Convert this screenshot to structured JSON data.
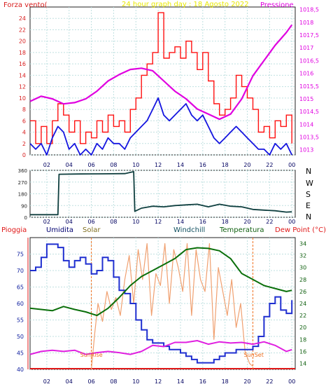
{
  "colors": {
    "wind_axis": "#d81d1d",
    "pressure": "#e000e0",
    "title": "#e8e800",
    "gust": "#ff1010",
    "avg": "#1515e0",
    "dir": "#0f3f3f",
    "humidity": "#1f2fd0",
    "temperature": "#0a6f0a",
    "dew": "#e020e0",
    "solar": "#f0a070",
    "rain_axis": "#e01818",
    "sunlabel": "#f07020"
  },
  "chart_data": [
    {
      "type": "line",
      "title": "24 hour graph day : 18 Agosto 2022",
      "ylabel_left": "Forza vento(",
      "ylabel_right": "Pressione",
      "x_ticks": [
        "02",
        "04",
        "06",
        "08",
        "10",
        "12",
        "14",
        "16",
        "18",
        "20",
        "22",
        "00"
      ],
      "x_range_hours": [
        0.5,
        24.3
      ],
      "ylim_left": [
        0,
        26
      ],
      "y_ticks_left": [
        "0",
        "2",
        "4",
        "6",
        "8",
        "10",
        "12",
        "14",
        "16",
        "18",
        "20",
        "22",
        "24"
      ],
      "ylim_right": [
        1012.8,
        1018.6
      ],
      "y_ticks_right": [
        "1013",
        "1013,5",
        "1014",
        "1014,5",
        "1015",
        "1015,5",
        "1016",
        "1016,5",
        "1017",
        "1017,5",
        "1018",
        "1018,5"
      ],
      "grid": true,
      "series": [
        {
          "role": "gust",
          "axis": "left",
          "x": [
            0.5,
            1.0,
            1.5,
            2.0,
            2.5,
            3.0,
            3.5,
            4.0,
            4.5,
            5.0,
            5.5,
            6.0,
            6.5,
            7.0,
            7.5,
            8.0,
            8.5,
            9.0,
            9.5,
            10.0,
            10.5,
            11.0,
            11.5,
            12.0,
            12.5,
            13.0,
            13.5,
            14.0,
            14.5,
            15.0,
            15.5,
            16.0,
            16.5,
            17.0,
            17.5,
            18.0,
            18.5,
            19.0,
            19.5,
            20.0,
            20.5,
            21.0,
            21.5,
            22.0,
            22.5,
            23.0,
            23.5,
            24.0
          ],
          "values": [
            6,
            2,
            5,
            2,
            6,
            9,
            7,
            4,
            6,
            2,
            4,
            3,
            6,
            4,
            7,
            5,
            6,
            4,
            8,
            10,
            14,
            16,
            18,
            25,
            17,
            18,
            19,
            17,
            20,
            18,
            15,
            18,
            13,
            9,
            7,
            8,
            10,
            14,
            12,
            10,
            8,
            4,
            5,
            3,
            6,
            5,
            7,
            2
          ]
        },
        {
          "role": "avg",
          "axis": "left",
          "x": [
            0.5,
            1.0,
            1.5,
            2.0,
            2.5,
            3.0,
            3.5,
            4.0,
            4.5,
            5.0,
            5.5,
            6.0,
            6.5,
            7.0,
            7.5,
            8.0,
            8.5,
            9.0,
            9.5,
            10.0,
            10.5,
            11.0,
            11.5,
            12.0,
            12.5,
            13.0,
            13.5,
            14.0,
            14.5,
            15.0,
            15.5,
            16.0,
            16.5,
            17.0,
            17.5,
            18.0,
            18.5,
            19.0,
            19.5,
            20.0,
            20.5,
            21.0,
            21.5,
            22.0,
            22.5,
            23.0,
            23.5,
            24.0
          ],
          "values": [
            2,
            1,
            2,
            0,
            3,
            5,
            4,
            1,
            2,
            0,
            1,
            0,
            2,
            1,
            3,
            2,
            2,
            1,
            3,
            4,
            5,
            6,
            8,
            10,
            7,
            6,
            7,
            8,
            9,
            7,
            6,
            7,
            5,
            3,
            2,
            3,
            4,
            5,
            4,
            3,
            2,
            1,
            1,
            0,
            2,
            1,
            2,
            0
          ]
        },
        {
          "role": "pressure",
          "axis": "right",
          "x": [
            0.5,
            1.5,
            2.5,
            3.5,
            4.5,
            5.5,
            6.5,
            7.5,
            8.5,
            9.5,
            10.5,
            11.5,
            12.5,
            13.5,
            14.5,
            15.5,
            16.5,
            17.5,
            18.5,
            19.5,
            20.5,
            21.5,
            22.5,
            23.5,
            24.0
          ],
          "values": [
            1014.9,
            1015.1,
            1015.0,
            1014.8,
            1014.85,
            1015.0,
            1015.3,
            1015.7,
            1015.95,
            1016.15,
            1016.2,
            1016.1,
            1015.7,
            1015.3,
            1015.0,
            1014.6,
            1014.4,
            1014.2,
            1014.4,
            1015.0,
            1015.9,
            1016.5,
            1017.1,
            1017.6,
            1017.9
          ]
        }
      ]
    },
    {
      "type": "line",
      "title": "",
      "x_ticks": [
        "02",
        "04",
        "06",
        "08",
        "10",
        "12",
        "14",
        "16",
        "18",
        "20",
        "22",
        "00"
      ],
      "ylim": [
        0,
        360
      ],
      "y_ticks": [
        "0",
        "90",
        "180",
        "270",
        "360"
      ],
      "side_labels": [
        "N",
        "W",
        "S",
        "E",
        "N"
      ],
      "grid": true,
      "series": [
        {
          "role": "direction",
          "x": [
            0.5,
            2.0,
            3.0,
            3.1,
            5.0,
            7.0,
            9.0,
            9.8,
            9.9,
            10.5,
            11.5,
            12.5,
            13.5,
            14.5,
            15.5,
            16.5,
            17.5,
            18.5,
            19.5,
            20.5,
            21.5,
            22.5,
            23.5,
            24.0
          ],
          "values": [
            20,
            20,
            20,
            330,
            332,
            333,
            335,
            350,
            45,
            70,
            85,
            80,
            90,
            95,
            100,
            80,
            100,
            85,
            80,
            60,
            55,
            50,
            40,
            42
          ]
        }
      ]
    },
    {
      "type": "line",
      "title": "",
      "legend": [
        "Pioggia",
        "Umidita",
        "Solar",
        "Windchill",
        "Temperatura",
        "Dew Point (°C)"
      ],
      "x_ticks": [
        "02",
        "04",
        "06",
        "08",
        "10",
        "12",
        "14",
        "16",
        "18",
        "20",
        "22",
        "00"
      ],
      "ylim_left": [
        40,
        80
      ],
      "y_ticks_left": [
        "40",
        "45",
        "50",
        "55",
        "60",
        "65",
        "70",
        "75"
      ],
      "ylim_right": [
        13,
        35
      ],
      "y_ticks_right": [
        "14",
        "16",
        "18",
        "20",
        "22",
        "24",
        "26",
        "28",
        "30",
        "32",
        "34"
      ],
      "annotations": [
        "SunRise",
        "SunSet"
      ],
      "grid": true,
      "series": [
        {
          "role": "humidity",
          "axis": "left",
          "x": [
            0.5,
            1.0,
            1.5,
            2.0,
            2.5,
            3.0,
            3.5,
            4.0,
            4.5,
            5.0,
            5.5,
            6.0,
            6.5,
            7.0,
            7.5,
            8.0,
            8.5,
            9.0,
            9.5,
            10.0,
            10.5,
            11.0,
            11.5,
            12.0,
            12.5,
            13.0,
            13.5,
            14.0,
            14.5,
            15.0,
            15.5,
            16.0,
            16.5,
            17.0,
            17.5,
            18.0,
            18.5,
            19.0,
            19.5,
            20.0,
            20.5,
            21.0,
            21.5,
            22.0,
            22.5,
            23.0,
            23.5,
            24.0
          ],
          "values": [
            70,
            71,
            74,
            78,
            78,
            77,
            73,
            71,
            73,
            74,
            72,
            69,
            70,
            74,
            73,
            68,
            64,
            63,
            60,
            55,
            52,
            49,
            48,
            48,
            47,
            46,
            46,
            45,
            44,
            43,
            42,
            42,
            42,
            43,
            44,
            45,
            45,
            46,
            46,
            46,
            47,
            50,
            56,
            60,
            62,
            58,
            57,
            61
          ]
        },
        {
          "role": "temperature",
          "axis": "right",
          "x": [
            0.5,
            1.5,
            2.5,
            3.5,
            4.5,
            5.5,
            6.5,
            7.5,
            8.5,
            9.5,
            10.5,
            11.5,
            12.5,
            13.5,
            14.5,
            15.5,
            16.5,
            17.5,
            18.5,
            19.5,
            20.5,
            21.5,
            22.5,
            23.5,
            24.0
          ],
          "values": [
            23.2,
            23.0,
            22.8,
            23.5,
            23.0,
            22.6,
            22.0,
            23.2,
            25.0,
            27.0,
            28.5,
            29.5,
            30.5,
            31.5,
            33.0,
            33.3,
            33.2,
            32.8,
            31.5,
            29.0,
            28.0,
            27.0,
            26.5,
            26.0,
            26.2
          ]
        },
        {
          "role": "dew",
          "axis": "right",
          "x": [
            0.5,
            1.5,
            2.5,
            3.5,
            4.5,
            5.5,
            6.5,
            7.5,
            8.5,
            9.5,
            10.5,
            11.5,
            12.5,
            13.5,
            14.5,
            15.5,
            16.5,
            17.5,
            18.5,
            19.5,
            20.5,
            21.5,
            22.5,
            23.5,
            24.0
          ],
          "values": [
            15.5,
            16.0,
            16.2,
            16.0,
            16.2,
            15.5,
            15.8,
            16.0,
            15.8,
            15.5,
            16.0,
            17.0,
            16.8,
            17.5,
            17.5,
            17.8,
            17.2,
            17.6,
            17.4,
            17.5,
            17.2,
            17.6,
            17.0,
            16.0,
            16.3
          ]
        },
        {
          "role": "solar",
          "axis": "right",
          "x": [
            6.0,
            6.3,
            6.6,
            7.0,
            7.4,
            7.8,
            8.2,
            8.6,
            9.0,
            9.4,
            9.8,
            10.2,
            10.6,
            11.0,
            11.4,
            11.8,
            12.2,
            12.6,
            13.0,
            13.4,
            13.8,
            14.2,
            14.6,
            15.0,
            15.4,
            15.8,
            16.2,
            16.6,
            17.0,
            17.4,
            17.8,
            18.2,
            18.6,
            19.0,
            19.4,
            19.8,
            20.2,
            20.5
          ],
          "values": [
            13.0,
            19.0,
            24.0,
            21.0,
            26.0,
            23.0,
            25.0,
            22.0,
            28.0,
            32.0,
            24.0,
            33.0,
            28.0,
            34.0,
            22.0,
            29.0,
            27.0,
            34.0,
            24.0,
            33.0,
            30.0,
            26.0,
            34.0,
            22.0,
            33.0,
            28.0,
            26.0,
            34.0,
            18.0,
            30.0,
            26.0,
            22.0,
            28.0,
            20.0,
            24.0,
            16.0,
            14.0,
            13.5
          ]
        }
      ]
    }
  ]
}
